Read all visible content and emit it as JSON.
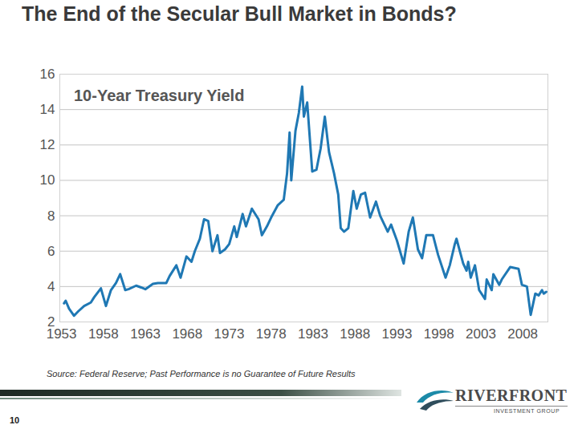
{
  "slide": {
    "title": "The End of the Secular Bull Market in Bonds?",
    "source": "Source:  Federal Reserve; Past Performance is no Guarantee of Future Results",
    "page_number": "10",
    "logo": {
      "name": "RIVERFRONT",
      "tagline": "INVESTMENT GROUP"
    }
  },
  "chart_data": {
    "type": "line",
    "title": "10-Year Treasury Yield",
    "color": "#1f78b4",
    "grid": true,
    "x": [
      1953.3,
      1953.5,
      1953.9,
      1954.5,
      1955.0,
      1955.7,
      1956.5,
      1956.9,
      1957.7,
      1958.3,
      1958.9,
      1959.5,
      1960.0,
      1960.6,
      1961.0,
      1961.9,
      1962.5,
      1963.0,
      1963.9,
      1964.5,
      1965.5,
      1965.9,
      1966.7,
      1967.2,
      1967.9,
      1968.5,
      1968.9,
      1969.5,
      1970.0,
      1970.5,
      1971.0,
      1971.6,
      1971.9,
      1972.5,
      1973.0,
      1973.6,
      1973.9,
      1974.6,
      1975.0,
      1975.7,
      1976.5,
      1976.9,
      1977.5,
      1978.0,
      1978.8,
      1979.5,
      1979.9,
      1980.2,
      1980.4,
      1980.9,
      1981.3,
      1981.7,
      1981.9,
      1982.3,
      1982.9,
      1983.4,
      1983.9,
      1984.4,
      1984.9,
      1985.5,
      1986.0,
      1986.3,
      1986.7,
      1987.2,
      1987.8,
      1988.2,
      1988.7,
      1989.2,
      1989.8,
      1990.5,
      1991.0,
      1991.9,
      1992.3,
      1993.0,
      1993.8,
      1994.4,
      1994.9,
      1995.5,
      1996.0,
      1996.5,
      1997.3,
      1997.9,
      1998.8,
      1999.3,
      1999.9,
      2000.1,
      2000.9,
      2001.3,
      2001.5,
      2001.8,
      2002.3,
      2002.8,
      2003.5,
      2003.7,
      2004.3,
      2004.5,
      2005.2,
      2005.5,
      2006.5,
      2007.5,
      2007.9,
      2008.5,
      2008.95,
      2009.5,
      2009.9,
      2010.3,
      2010.5,
      2010.8
    ],
    "values": [
      3.05,
      3.2,
      2.75,
      2.35,
      2.6,
      2.9,
      3.1,
      3.4,
      3.9,
      2.9,
      3.8,
      4.2,
      4.7,
      3.8,
      3.85,
      4.05,
      3.95,
      3.85,
      4.15,
      4.2,
      4.2,
      4.6,
      5.2,
      4.5,
      5.7,
      5.4,
      6.0,
      6.7,
      7.8,
      7.7,
      6.0,
      6.9,
      5.9,
      6.1,
      6.4,
      7.4,
      6.8,
      8.1,
      7.4,
      8.4,
      7.8,
      6.9,
      7.4,
      7.9,
      8.6,
      8.9,
      10.4,
      12.7,
      10.0,
      12.8,
      13.8,
      15.3,
      13.6,
      14.4,
      10.5,
      10.6,
      11.8,
      13.6,
      11.6,
      10.4,
      9.2,
      7.3,
      7.1,
      7.3,
      9.4,
      8.4,
      9.2,
      9.3,
      7.9,
      8.8,
      8.0,
      7.1,
      7.5,
      6.6,
      5.3,
      7.1,
      7.9,
      6.1,
      5.6,
      6.9,
      6.9,
      5.8,
      4.5,
      5.2,
      6.4,
      6.7,
      5.3,
      4.9,
      5.4,
      4.5,
      5.2,
      3.8,
      3.3,
      4.4,
      3.8,
      4.7,
      4.1,
      4.4,
      5.1,
      5.0,
      4.1,
      4.0,
      2.4,
      3.6,
      3.5,
      3.8,
      3.6,
      3.7
    ],
    "xlim": [
      1952.8,
      2011
    ],
    "xticks": [
      1953,
      1958,
      1963,
      1968,
      1973,
      1978,
      1983,
      1988,
      1993,
      1998,
      2003,
      2008
    ],
    "ylim": [
      2,
      16
    ],
    "yticks": [
      2,
      4,
      6,
      8,
      10,
      12,
      14,
      16
    ]
  }
}
